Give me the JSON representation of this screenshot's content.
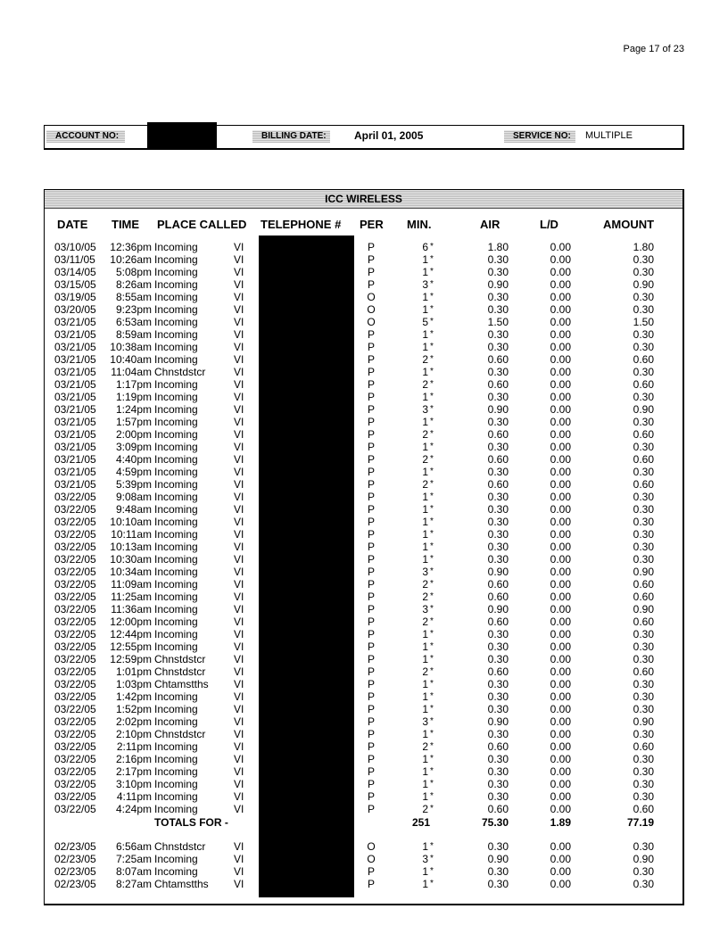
{
  "page": {
    "label": "Page 17  of  23"
  },
  "header": {
    "account_label": "ACCOUNT NO:",
    "billing_label": "BILLING DATE:",
    "billing_date": "April  01, 2005",
    "service_label": "SERVICE NO:",
    "service_value": "MULTIPLE"
  },
  "table": {
    "title": "ICC WIRELESS",
    "columns": [
      "DATE",
      "TIME",
      "PLACE CALLED",
      "TELEPHONE #",
      "PER",
      "MIN.",
      "AIR",
      "L/D",
      "AMOUNT"
    ],
    "group1": [
      [
        "03/10/05",
        "12:36pm",
        "Incoming",
        "VI",
        "P",
        "6",
        "1.80",
        "0.00",
        "1.80"
      ],
      [
        "03/11/05",
        "10:26am",
        "Incoming",
        "VI",
        "P",
        "1",
        "0.30",
        "0.00",
        "0.30"
      ],
      [
        "03/14/05",
        "5:08pm",
        "Incoming",
        "VI",
        "P",
        "1",
        "0.30",
        "0.00",
        "0.30"
      ],
      [
        "03/15/05",
        "8:26am",
        "Incoming",
        "VI",
        "P",
        "3",
        "0.90",
        "0.00",
        "0.90"
      ],
      [
        "03/19/05",
        "8:55am",
        "Incoming",
        "VI",
        "O",
        "1",
        "0.30",
        "0.00",
        "0.30"
      ],
      [
        "03/20/05",
        "9:23pm",
        "Incoming",
        "VI",
        "O",
        "1",
        "0.30",
        "0.00",
        "0.30"
      ],
      [
        "03/21/05",
        "6:53am",
        "Incoming",
        "VI",
        "O",
        "5",
        "1.50",
        "0.00",
        "1.50"
      ],
      [
        "03/21/05",
        "8:59am",
        "Incoming",
        "VI",
        "P",
        "1",
        "0.30",
        "0.00",
        "0.30"
      ],
      [
        "03/21/05",
        "10:38am",
        "Incoming",
        "VI",
        "P",
        "1",
        "0.30",
        "0.00",
        "0.30"
      ],
      [
        "03/21/05",
        "10:40am",
        "Incoming",
        "VI",
        "P",
        "2",
        "0.60",
        "0.00",
        "0.60"
      ],
      [
        "03/21/05",
        "11:04am",
        "Chnstdstcr",
        "VI",
        "P",
        "1",
        "0.30",
        "0.00",
        "0.30"
      ],
      [
        "03/21/05",
        "1:17pm",
        "Incoming",
        "VI",
        "P",
        "2",
        "0.60",
        "0.00",
        "0.60"
      ],
      [
        "03/21/05",
        "1:19pm",
        "Incoming",
        "VI",
        "P",
        "1",
        "0.30",
        "0.00",
        "0.30"
      ],
      [
        "03/21/05",
        "1:24pm",
        "Incoming",
        "VI",
        "P",
        "3",
        "0.90",
        "0.00",
        "0.90"
      ],
      [
        "03/21/05",
        "1:57pm",
        "Incoming",
        "VI",
        "P",
        "1",
        "0.30",
        "0.00",
        "0.30"
      ],
      [
        "03/21/05",
        "2:00pm",
        "Incoming",
        "VI",
        "P",
        "2",
        "0.60",
        "0.00",
        "0.60"
      ],
      [
        "03/21/05",
        "3:09pm",
        "Incoming",
        "VI",
        "P",
        "1",
        "0.30",
        "0.00",
        "0.30"
      ],
      [
        "03/21/05",
        "4:40pm",
        "Incoming",
        "VI",
        "P",
        "2",
        "0.60",
        "0.00",
        "0.60"
      ],
      [
        "03/21/05",
        "4:59pm",
        "Incoming",
        "VI",
        "P",
        "1",
        "0.30",
        "0.00",
        "0.30"
      ],
      [
        "03/21/05",
        "5:39pm",
        "Incoming",
        "VI",
        "P",
        "2",
        "0.60",
        "0.00",
        "0.60"
      ],
      [
        "03/22/05",
        "9:08am",
        "Incoming",
        "VI",
        "P",
        "1",
        "0.30",
        "0.00",
        "0.30"
      ],
      [
        "03/22/05",
        "9:48am",
        "Incoming",
        "VI",
        "P",
        "1",
        "0.30",
        "0.00",
        "0.30"
      ],
      [
        "03/22/05",
        "10:10am",
        "Incoming",
        "VI",
        "P",
        "1",
        "0.30",
        "0.00",
        "0.30"
      ],
      [
        "03/22/05",
        "10:11am",
        "Incoming",
        "VI",
        "P",
        "1",
        "0.30",
        "0.00",
        "0.30"
      ],
      [
        "03/22/05",
        "10:13am",
        "Incoming",
        "VI",
        "P",
        "1",
        "0.30",
        "0.00",
        "0.30"
      ],
      [
        "03/22/05",
        "10:30am",
        "Incoming",
        "VI",
        "P",
        "1",
        "0.30",
        "0.00",
        "0.30"
      ],
      [
        "03/22/05",
        "10:34am",
        "Incoming",
        "VI",
        "P",
        "3",
        "0.90",
        "0.00",
        "0.90"
      ],
      [
        "03/22/05",
        "11:09am",
        "Incoming",
        "VI",
        "P",
        "2",
        "0.60",
        "0.00",
        "0.60"
      ],
      [
        "03/22/05",
        "11:25am",
        "Incoming",
        "VI",
        "P",
        "2",
        "0.60",
        "0.00",
        "0.60"
      ],
      [
        "03/22/05",
        "11:36am",
        "Incoming",
        "VI",
        "P",
        "3",
        "0.90",
        "0.00",
        "0.90"
      ],
      [
        "03/22/05",
        "12:00pm",
        "Incoming",
        "VI",
        "P",
        "2",
        "0.60",
        "0.00",
        "0.60"
      ],
      [
        "03/22/05",
        "12:44pm",
        "Incoming",
        "VI",
        "P",
        "1",
        "0.30",
        "0.00",
        "0.30"
      ],
      [
        "03/22/05",
        "12:55pm",
        "Incoming",
        "VI",
        "P",
        "1",
        "0.30",
        "0.00",
        "0.30"
      ],
      [
        "03/22/05",
        "12:59pm",
        "Chnstdstcr",
        "VI",
        "P",
        "1",
        "0.30",
        "0.00",
        "0.30"
      ],
      [
        "03/22/05",
        "1:01pm",
        "Chnstdstcr",
        "VI",
        "P",
        "2",
        "0.60",
        "0.00",
        "0.60"
      ],
      [
        "03/22/05",
        "1:03pm",
        "Chtamstths",
        "VI",
        "P",
        "1",
        "0.30",
        "0.00",
        "0.30"
      ],
      [
        "03/22/05",
        "1:42pm",
        "Incoming",
        "VI",
        "P",
        "1",
        "0.30",
        "0.00",
        "0.30"
      ],
      [
        "03/22/05",
        "1:52pm",
        "Incoming",
        "VI",
        "P",
        "1",
        "0.30",
        "0.00",
        "0.30"
      ],
      [
        "03/22/05",
        "2:02pm",
        "Incoming",
        "VI",
        "P",
        "3",
        "0.90",
        "0.00",
        "0.90"
      ],
      [
        "03/22/05",
        "2:10pm",
        "Chnstdstcr",
        "VI",
        "P",
        "1",
        "0.30",
        "0.00",
        "0.30"
      ],
      [
        "03/22/05",
        "2:11pm",
        "Incoming",
        "VI",
        "P",
        "2",
        "0.60",
        "0.00",
        "0.60"
      ],
      [
        "03/22/05",
        "2:16pm",
        "Incoming",
        "VI",
        "P",
        "1",
        "0.30",
        "0.00",
        "0.30"
      ],
      [
        "03/22/05",
        "2:17pm",
        "Incoming",
        "VI",
        "P",
        "1",
        "0.30",
        "0.00",
        "0.30"
      ],
      [
        "03/22/05",
        "3:10pm",
        "Incoming",
        "VI",
        "P",
        "1",
        "0.30",
        "0.00",
        "0.30"
      ],
      [
        "03/22/05",
        "4:11pm",
        "Incoming",
        "VI",
        "P",
        "1",
        "0.30",
        "0.00",
        "0.30"
      ],
      [
        "03/22/05",
        "4:24pm",
        "Incoming",
        "VI",
        "P",
        "2",
        "0.60",
        "0.00",
        "0.60"
      ]
    ],
    "totals": {
      "label": "TOTALS FOR -",
      "min": "251",
      "air": "75.30",
      "ld": "1.89",
      "amount": "77.19"
    },
    "group2": [
      [
        "02/23/05",
        "6:56am",
        "Chnstdstcr",
        "VI",
        "O",
        "1",
        "0.30",
        "0.00",
        "0.30"
      ],
      [
        "02/23/05",
        "7:25am",
        "Incoming",
        "VI",
        "O",
        "3",
        "0.90",
        "0.00",
        "0.90"
      ],
      [
        "02/23/05",
        "8:07am",
        "Incoming",
        "VI",
        "P",
        "1",
        "0.30",
        "0.00",
        "0.30"
      ],
      [
        "02/23/05",
        "8:27am",
        "Chtamstths",
        "VI",
        "P",
        "1",
        "0.30",
        "0.00",
        "0.30"
      ]
    ],
    "min_marker": "*"
  },
  "colors": {
    "redaction": "#000000",
    "label_shading": "#cccccc"
  }
}
